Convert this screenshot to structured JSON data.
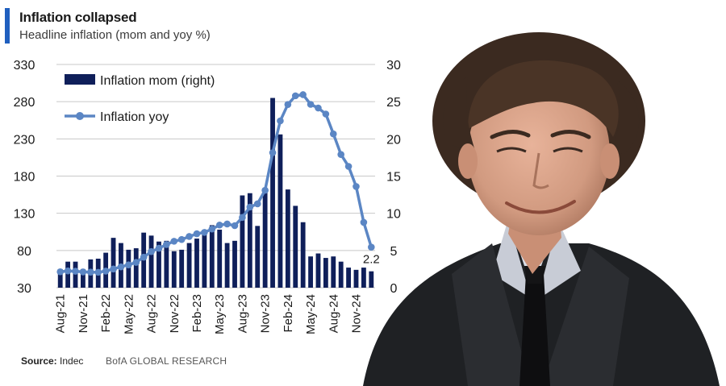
{
  "header": {
    "title": "Inflation collapsed",
    "subtitle": "Headline inflation (mom and yoy %)"
  },
  "footer": {
    "source_label": "Source:",
    "source_value": "Indec",
    "brand": "BofA GLOBAL RESEARCH"
  },
  "colors": {
    "accent": "#1f5fbf",
    "bar": "#0f1f5a",
    "line": "#5b86c4",
    "grid": "#c8c8c8"
  },
  "chart_data": {
    "type": "bar",
    "title": "Inflation collapsed",
    "subtitle": "Headline inflation (mom and yoy %)",
    "x": [
      "Aug-21",
      "Sep-21",
      "Oct-21",
      "Nov-21",
      "Dec-21",
      "Jan-22",
      "Feb-22",
      "Mar-22",
      "Apr-22",
      "May-22",
      "Jun-22",
      "Jul-22",
      "Aug-22",
      "Sep-22",
      "Oct-22",
      "Nov-22",
      "Dec-22",
      "Jan-23",
      "Feb-23",
      "Mar-23",
      "Apr-23",
      "May-23",
      "Jun-23",
      "Jul-23",
      "Aug-23",
      "Sep-23",
      "Oct-23",
      "Nov-23",
      "Dec-23",
      "Jan-24",
      "Feb-24",
      "Mar-24",
      "Apr-24",
      "May-24",
      "Jun-24",
      "Jul-24",
      "Aug-24",
      "Sep-24",
      "Oct-24",
      "Nov-24",
      "Dec-24",
      "Jan-25"
    ],
    "x_tick_labels": [
      "Aug-21",
      "Nov-21",
      "Feb-22",
      "May-22",
      "Aug-22",
      "Nov-22",
      "Feb-23",
      "May-23",
      "Aug-23",
      "Nov-23",
      "Feb-24",
      "May-24",
      "Aug-24",
      "Nov-24"
    ],
    "x_tick_every": 3,
    "series": [
      {
        "name": "Inflation mom (right)",
        "type": "bar",
        "axis": "right",
        "values": [
          2.5,
          3.5,
          3.5,
          2.5,
          3.8,
          3.9,
          4.7,
          6.7,
          6.0,
          5.1,
          5.3,
          7.4,
          7.0,
          6.2,
          6.3,
          4.9,
          5.1,
          6.0,
          6.6,
          7.7,
          8.4,
          7.8,
          6.0,
          6.3,
          12.4,
          12.7,
          8.3,
          12.8,
          25.5,
          20.6,
          13.2,
          11.0,
          8.8,
          4.2,
          4.6,
          4.0,
          4.2,
          3.5,
          2.7,
          2.4,
          2.7,
          2.2
        ]
      },
      {
        "name": "Inflation yoy",
        "type": "line",
        "axis": "left",
        "values": [
          51.4,
          52.5,
          52.1,
          51.2,
          50.9,
          50.7,
          52.3,
          55.1,
          58.0,
          60.7,
          64.0,
          71.0,
          78.5,
          83.0,
          88.0,
          92.4,
          94.8,
          98.8,
          102.5,
          104.3,
          108.8,
          114.2,
          115.6,
          113.4,
          124.4,
          138.3,
          142.7,
          160.9,
          211.4,
          254.2,
          276.2,
          287.9,
          289.4,
          276.4,
          271.5,
          263.4,
          236.7,
          209.0,
          193.0,
          166.0,
          117.8,
          84.5
        ]
      }
    ],
    "annotations": [
      {
        "text": "2.2"
      }
    ],
    "ylim_left": [
      30,
      330
    ],
    "yticks_left": [
      30,
      80,
      130,
      180,
      230,
      280,
      330
    ],
    "ylim_right": [
      0,
      30
    ],
    "yticks_right": [
      0,
      5,
      10,
      15,
      20,
      25,
      30
    ],
    "grid": "horizontal",
    "legend_position": "top-left"
  }
}
